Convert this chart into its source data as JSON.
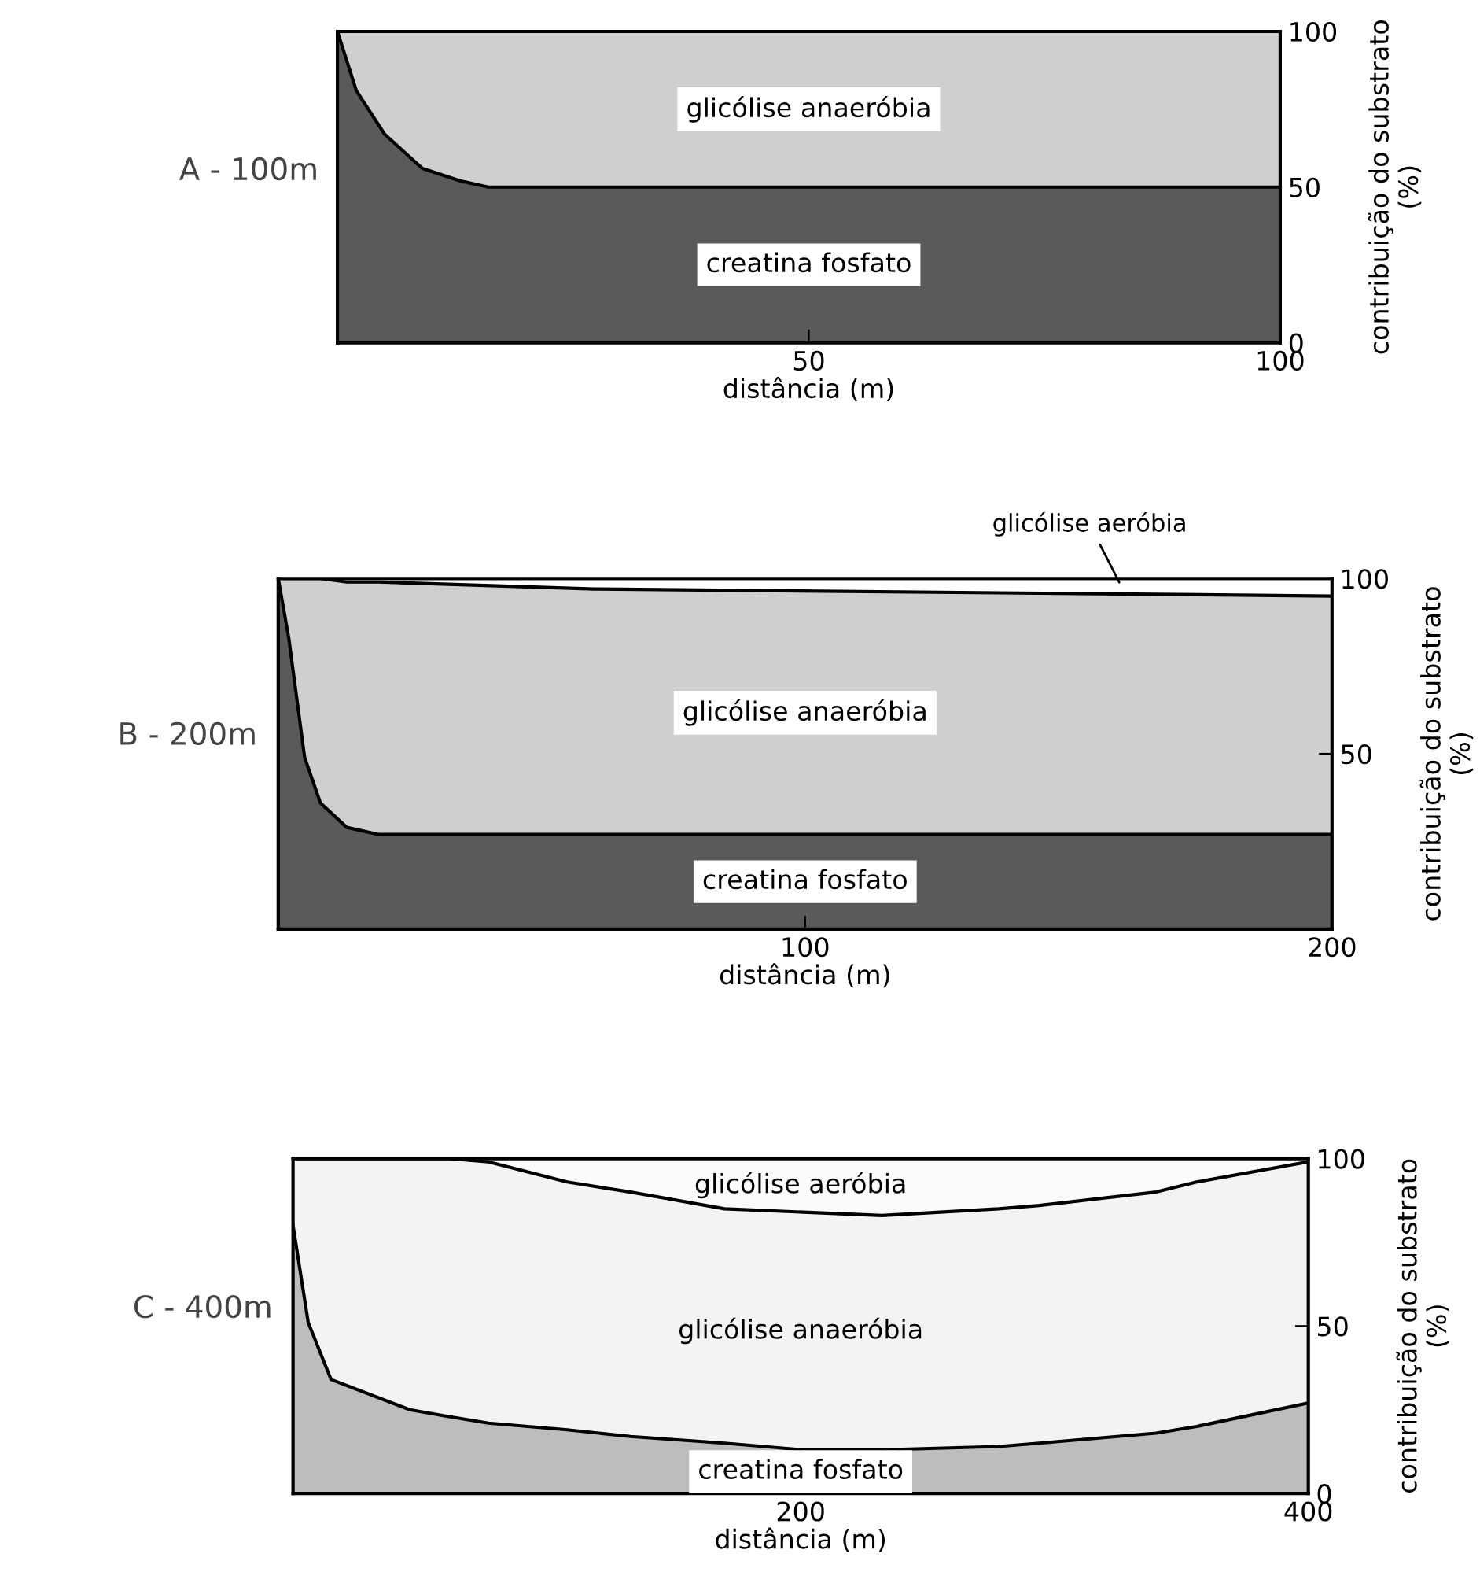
{
  "chart_data": [
    {
      "type": "area",
      "stacked": true,
      "title": "A - 100m",
      "xlabel": "distância (m)",
      "ylabel": "contribuição do substrato\n(%)",
      "x": [
        0,
        2,
        5,
        9,
        13,
        16,
        100
      ],
      "xlim": [
        0,
        100
      ],
      "xticks": [
        50,
        100
      ],
      "ylim": [
        0,
        100
      ],
      "yticks": [
        0,
        50,
        100
      ],
      "grid": false,
      "legend": false,
      "series": [
        {
          "name": "creatina fosfato",
          "color": "#5a5a5a",
          "values": [
            100,
            81,
            67,
            56,
            52,
            50,
            50
          ]
        },
        {
          "name": "glicólise anaeróbia",
          "color": "#cfcfcf",
          "values": [
            0,
            19,
            33,
            44,
            48,
            50,
            50
          ]
        }
      ]
    },
    {
      "type": "area",
      "stacked": true,
      "title": "B - 200m",
      "xlabel": "distância (m)",
      "ylabel": "contribuição do substrato\n(%)",
      "x": [
        0,
        2,
        5,
        8,
        13,
        19,
        60,
        200
      ],
      "xlim": [
        0,
        200
      ],
      "xticks": [
        100,
        200
      ],
      "ylim": [
        0,
        100
      ],
      "yticks": [
        50,
        100
      ],
      "grid": false,
      "legend": false,
      "series": [
        {
          "name": "creatina fosfato",
          "color": "#5a5a5a",
          "values": [
            100,
            83,
            49,
            36,
            29,
            27,
            27,
            27
          ]
        },
        {
          "name": "glicólise anaeróbia",
          "color": "#cfcfcf",
          "values": [
            0,
            17,
            51,
            64,
            70,
            72,
            70,
            68
          ]
        },
        {
          "name": "glicólise aeróbia",
          "color": "#ffffff",
          "values": [
            0,
            0,
            0,
            0,
            1,
            1,
            3,
            5
          ]
        }
      ]
    },
    {
      "type": "area",
      "stacked": true,
      "title": "C - 400m",
      "xlabel": "distância (m)",
      "ylabel": "contribuição do substrato\n(%)",
      "x": [
        0,
        6,
        15,
        46,
        61,
        77,
        108,
        133,
        170,
        201,
        232,
        278,
        294,
        340,
        356,
        400
      ],
      "xlim": [
        0,
        400
      ],
      "xticks": [
        200,
        400
      ],
      "ylim": [
        0,
        100
      ],
      "yticks": [
        0,
        50,
        100
      ],
      "grid": false,
      "legend": false,
      "series": [
        {
          "name": "creatina fosfato",
          "color": "#bdbdbd",
          "values": [
            80,
            51,
            34,
            25,
            23,
            21,
            19,
            17,
            15,
            13,
            13,
            14,
            15,
            18,
            20,
            27
          ]
        },
        {
          "name": "glicólise anaeróbia",
          "color": "#f3f3f3",
          "values": [
            20,
            49,
            66,
            75,
            77,
            78,
            74,
            73,
            70,
            71,
            70,
            71,
            71,
            72,
            73,
            72
          ]
        },
        {
          "name": "glicólise aeróbia",
          "color": "#fbfbfb",
          "values": [
            0,
            0,
            0,
            0,
            0,
            1,
            7,
            10,
            15,
            16,
            17,
            15,
            14,
            10,
            7,
            1
          ]
        }
      ]
    }
  ]
}
